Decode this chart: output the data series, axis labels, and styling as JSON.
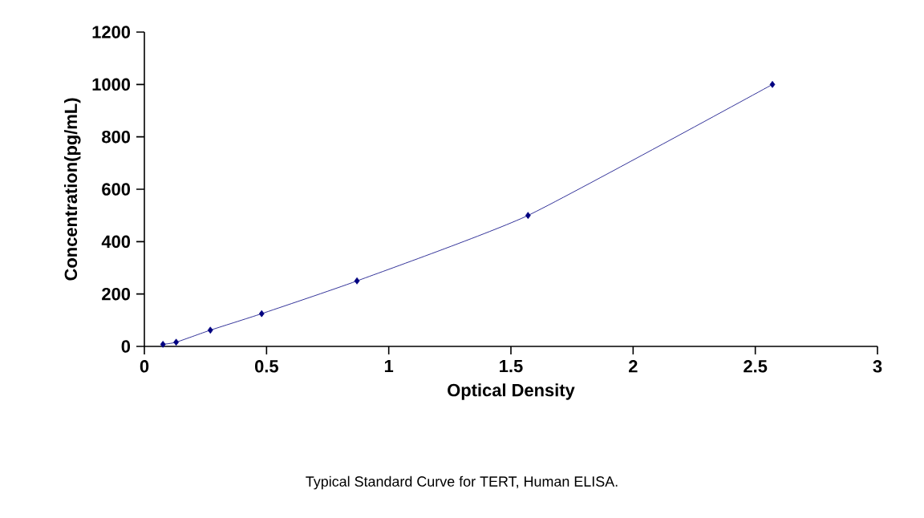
{
  "chart_data": {
    "type": "line",
    "xlabel": "Optical Density",
    "ylabel": "Concentration(pg/mL)",
    "annotations": [
      "Typical Standard Curve for TERT, Human ELISA."
    ],
    "x": [
      0.076,
      0.13,
      0.27,
      0.48,
      0.87,
      1.57,
      2.57
    ],
    "series": [
      {
        "color": "#000080",
        "values": [
          8,
          16,
          62,
          125,
          250,
          500,
          1000
        ]
      }
    ],
    "xlim": [
      0,
      3
    ],
    "xticks": [
      0,
      0.5,
      1,
      1.5,
      2,
      2.5,
      3
    ],
    "ylim": [
      0,
      1200
    ],
    "yticks": [
      0,
      200,
      400,
      600,
      800,
      1000,
      1200
    ],
    "marker": "diamond",
    "line_style": "solid",
    "grid": false
  }
}
